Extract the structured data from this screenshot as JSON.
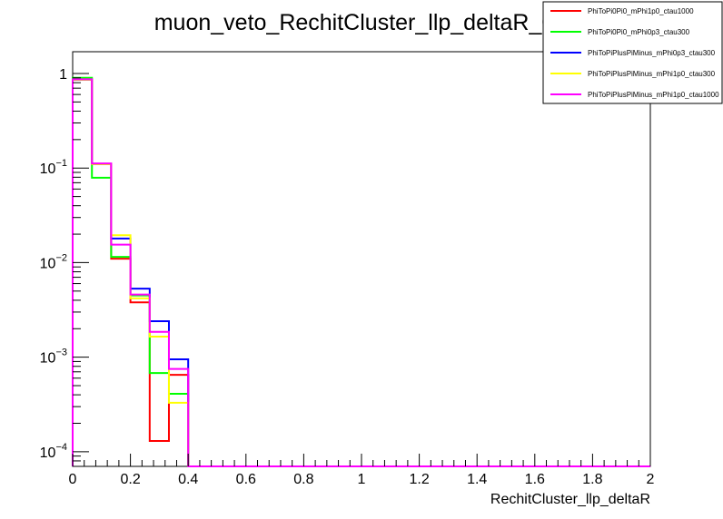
{
  "chart_data": {
    "type": "line",
    "title": "muon_veto_RechitCluster_llp_deltaR_0",
    "xlabel": "RechitCluster_llp_deltaR",
    "ylabel": "",
    "xlim": [
      0,
      2
    ],
    "ylim": [
      7e-05,
      1.7
    ],
    "y_scale": "log",
    "grid": false,
    "legend_position": "top-right",
    "bin_edges": [
      0,
      0.0667,
      0.1333,
      0.2,
      0.2667,
      0.3333,
      0.4
    ],
    "x_ticks": [
      {
        "value": 0,
        "label": "0"
      },
      {
        "value": 0.2,
        "label": "0.2"
      },
      {
        "value": 0.4,
        "label": "0.4"
      },
      {
        "value": 0.6,
        "label": "0.6"
      },
      {
        "value": 0.8,
        "label": "0.8"
      },
      {
        "value": 1.0,
        "label": "1"
      },
      {
        "value": 1.2,
        "label": "1.2"
      },
      {
        "value": 1.4,
        "label": "1.4"
      },
      {
        "value": 1.6,
        "label": "1.6"
      },
      {
        "value": 1.8,
        "label": "1.8"
      },
      {
        "value": 2.0,
        "label": "2"
      }
    ],
    "y_ticks": [
      {
        "value": 1,
        "base": "1",
        "exp": ""
      },
      {
        "value": 0.1,
        "base": "10",
        "exp": "−1"
      },
      {
        "value": 0.01,
        "base": "10",
        "exp": "−2"
      },
      {
        "value": 0.001,
        "base": "10",
        "exp": "−3"
      },
      {
        "value": 0.0001,
        "base": "10",
        "exp": "−4"
      }
    ],
    "series": [
      {
        "name": "PhiToPi0Pi0_mPhi1p0_ctau1000",
        "color": "#ff0000",
        "values": [
          0.87,
          0.11,
          0.011,
          0.0038,
          0.00013,
          0.00065
        ]
      },
      {
        "name": "PhiToPi0Pi0_mPhi0p3_ctau300",
        "color": "#00ff00",
        "values": [
          0.9,
          0.079,
          0.0115,
          0.0045,
          0.00068,
          0.00041
        ]
      },
      {
        "name": "PhiToPiPlusPiMinus_mPhi0p3_ctau300",
        "color": "#0000ff",
        "values": [
          0.86,
          0.11,
          0.018,
          0.0053,
          0.0024,
          0.00095
        ]
      },
      {
        "name": "PhiToPiPlusPiMinus_mPhi1p0_ctau300",
        "color": "#ffff00",
        "values": [
          0.86,
          0.11,
          0.0195,
          0.0042,
          0.00165,
          0.00033
        ]
      },
      {
        "name": "PhiToPiPlusPiMinus_mPhi1p0_ctau1000",
        "color": "#ff00ff",
        "values": [
          0.87,
          0.112,
          0.0155,
          0.0046,
          0.00185,
          0.00075
        ]
      }
    ]
  }
}
